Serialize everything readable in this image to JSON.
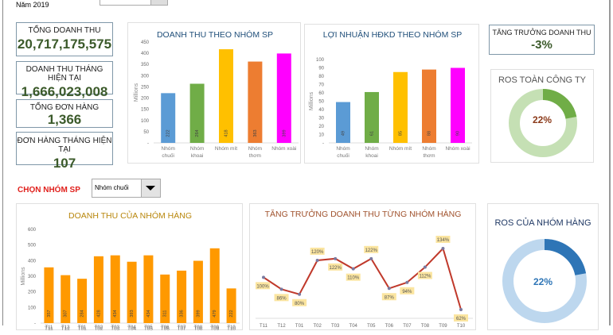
{
  "year_label": "Năm 2019",
  "kpis": [
    {
      "label": "TỔNG DOANH THU",
      "value": "20,717,175,575"
    },
    {
      "label": "DOANH THU THÁNG HIỆN TẠI",
      "value": "1,666,023,008"
    },
    {
      "label": "TỔNG ĐƠN HÀNG",
      "value": "1,366"
    },
    {
      "label": "ĐƠN HÀNG THÁNG HIỆN TẠI",
      "value": "107"
    }
  ],
  "growth": {
    "label": "TĂNG TRƯỞNG DOANH THU",
    "value": "-3%"
  },
  "ros_company": {
    "title": "ROS TOÀN CÔNG TY",
    "value": "22%",
    "percent": 22,
    "colors": [
      "#70ad47",
      "#c5e0b4"
    ]
  },
  "ros_group": {
    "title": "ROS CỦA NHÓM HÀNG",
    "value": "22%",
    "percent": 22,
    "colors": [
      "#2e75b6",
      "#bdd7ee"
    ]
  },
  "selector": {
    "label": "CHỌN NHÓM SP",
    "value": "Nhóm chuối"
  },
  "chart_data": [
    {
      "type": "bar",
      "title": "DOANH THU THEO NHÓM SP",
      "ylabel": "Millions",
      "ylim": [
        0,
        450
      ],
      "yticks": [
        "-",
        "50",
        "100",
        "150",
        "200",
        "250",
        "300",
        "350",
        "400",
        "450"
      ],
      "categories": [
        "Nhóm chuối",
        "Nhóm khoai",
        "Nhóm mít",
        "Nhóm thơm",
        "Nhóm xoài"
      ],
      "values": [
        222,
        264,
        418,
        363,
        399
      ],
      "colors": [
        "#5b9bd5",
        "#70ad47",
        "#ffc000",
        "#ed7d31",
        "#ff00ff"
      ]
    },
    {
      "type": "bar",
      "title": "LỢI NHUẬN HĐKD THEO NHÓM SP",
      "ylabel": "Millions",
      "ylim": [
        0,
        100
      ],
      "yticks": [
        "-",
        "10",
        "20",
        "30",
        "40",
        "50",
        "60",
        "70",
        "80",
        "90",
        "100"
      ],
      "categories": [
        "Nhóm chuối",
        "Nhóm khoai",
        "Nhóm mít",
        "Nhóm thơm",
        "Nhóm xoài"
      ],
      "values": [
        49,
        61,
        85,
        88,
        90
      ],
      "colors": [
        "#5b9bd5",
        "#70ad47",
        "#ffc000",
        "#ed7d31",
        "#ff00ff"
      ]
    },
    {
      "type": "bar",
      "title": "DOANH THU CỦA NHÓM HÀNG",
      "ylabel": "Millions",
      "ylim": [
        0,
        600
      ],
      "yticks": [
        "-",
        "100",
        "200",
        "300",
        "400",
        "500",
        "600"
      ],
      "categories": [
        "T11",
        "T12",
        "T01",
        "T02",
        "T03",
        "T04",
        "T05",
        "T06",
        "T07",
        "T08",
        "T09",
        "T10"
      ],
      "values": [
        357,
        307,
        284,
        428,
        434,
        393,
        434,
        311,
        336,
        399,
        479,
        222
      ],
      "colors": [
        "#ff9900"
      ]
    },
    {
      "type": "line",
      "title": "TĂNG TRƯỞNG DOANH THU TỪNG NHÓM HÀNG",
      "categories": [
        "T11",
        "T12",
        "T01",
        "T02",
        "T03",
        "T04",
        "T05",
        "T06",
        "T07",
        "T08",
        "T09",
        "T10"
      ],
      "values": [
        100,
        86,
        80,
        120,
        122,
        110,
        122,
        87,
        94,
        112,
        134,
        62
      ],
      "labels": [
        "100%",
        "86%",
        "80%",
        "120%",
        "122%",
        "110%",
        "122%",
        "87%",
        "94%",
        "112%",
        "134%",
        "62%"
      ],
      "colors": [
        "#c0392b"
      ]
    }
  ]
}
